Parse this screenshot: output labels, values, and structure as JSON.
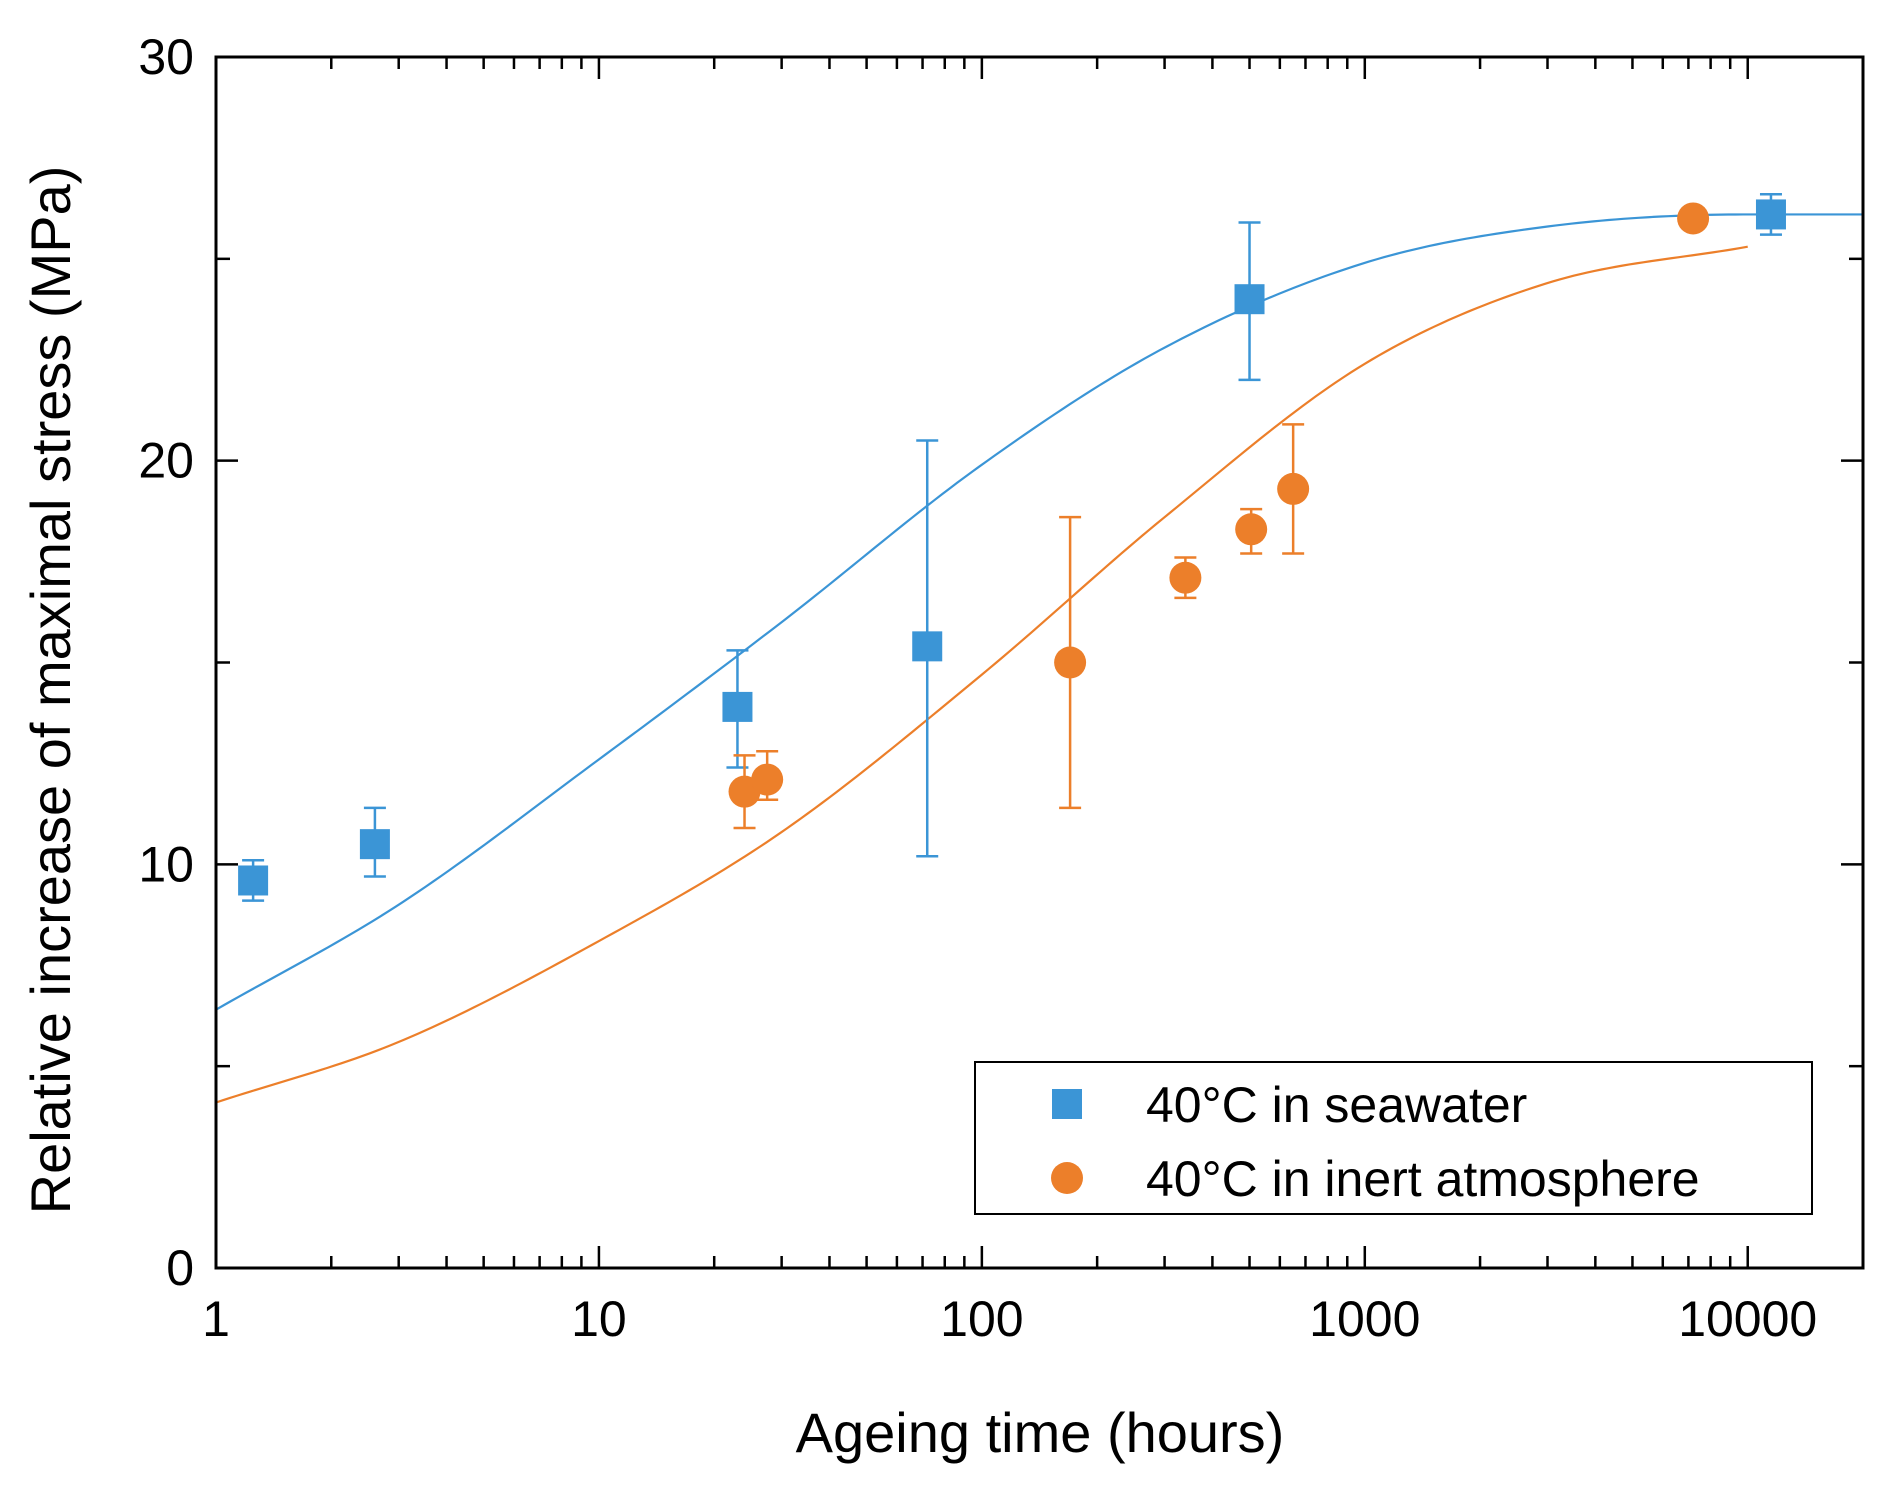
{
  "chart_data": {
    "type": "scatter",
    "xscale": "log",
    "xlabel": "Ageing time (hours)",
    "ylabel": "Relative increase of maximal stress (MPa)",
    "xlim": [
      1,
      20000
    ],
    "ylim": [
      0,
      30
    ],
    "x_tick_labels": [
      "1",
      "10",
      "100",
      "1000",
      "10000"
    ],
    "x_tick_values": [
      1,
      10,
      100,
      1000,
      10000
    ],
    "y_tick_labels": [
      "0",
      "10",
      "20",
      "30"
    ],
    "y_tick_values": [
      0,
      10,
      20,
      30
    ],
    "legend_position": "bottom-right",
    "series": [
      {
        "name": "40°C in seawater",
        "marker": "square",
        "color": "#3b95d6",
        "points": [
          {
            "x": 1.25,
            "y": 9.6,
            "err_low": 9.1,
            "err_high": 10.1
          },
          {
            "x": 2.6,
            "y": 10.5,
            "err_low": 9.7,
            "err_high": 11.4
          },
          {
            "x": 23,
            "y": 13.9,
            "err_low": 12.4,
            "err_high": 15.3
          },
          {
            "x": 72,
            "y": 15.4,
            "err_low": 10.2,
            "err_high": 20.5
          },
          {
            "x": 500,
            "y": 24.0,
            "err_low": 22.0,
            "err_high": 25.9
          },
          {
            "x": 11500,
            "y": 26.1,
            "err_low": 25.6,
            "err_high": 26.6
          }
        ],
        "fit": {
          "type": "logistic-log",
          "x_from": 1,
          "x_to": 20000,
          "x": [
            1,
            3,
            10,
            30,
            100,
            300,
            1000,
            3000,
            10000,
            20000
          ],
          "y": [
            6.4,
            9.0,
            12.6,
            16.0,
            19.9,
            22.8,
            24.9,
            25.8,
            26.1,
            26.1
          ]
        }
      },
      {
        "name": "40°C in inert atmosphere",
        "marker": "circle",
        "color": "#ec7f2a",
        "points": [
          {
            "x": 24,
            "y": 11.8,
            "err_low": 10.9,
            "err_high": 12.7
          },
          {
            "x": 27.5,
            "y": 12.1,
            "err_low": 11.6,
            "err_high": 12.8
          },
          {
            "x": 170,
            "y": 15.0,
            "err_low": 11.4,
            "err_high": 18.6
          },
          {
            "x": 340,
            "y": 17.1,
            "err_low": 16.6,
            "err_high": 17.6
          },
          {
            "x": 505,
            "y": 18.3,
            "err_low": 17.7,
            "err_high": 18.8
          },
          {
            "x": 650,
            "y": 19.3,
            "err_low": 17.7,
            "err_high": 20.9
          },
          {
            "x": 7200,
            "y": 26.0,
            "err_low": 26.0,
            "err_high": 26.0
          }
        ],
        "fit": {
          "type": "logistic-log",
          "x_from": 1,
          "x_to": 10000,
          "x": [
            1,
            3,
            10,
            30,
            100,
            300,
            1000,
            3000,
            10000
          ],
          "y": [
            4.1,
            5.6,
            8.1,
            10.8,
            14.7,
            18.6,
            22.4,
            24.4,
            25.3
          ]
        }
      }
    ]
  }
}
